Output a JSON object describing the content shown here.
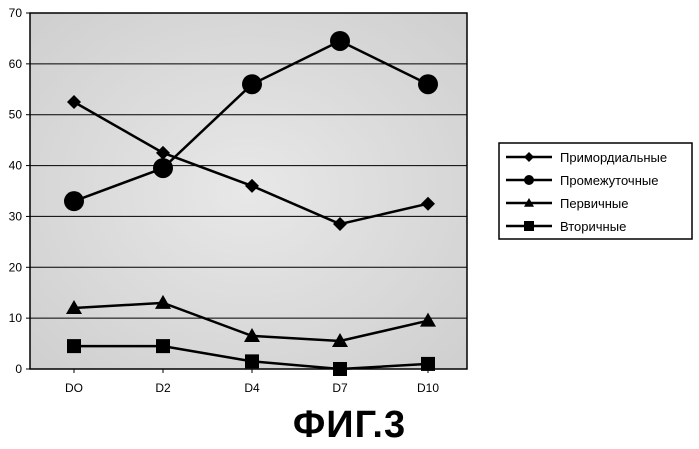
{
  "caption": "ФИГ.3",
  "chart_data": {
    "type": "line",
    "categories": [
      "DO",
      "D2",
      "D4",
      "D7",
      "D10"
    ],
    "ylim": [
      0,
      70
    ],
    "yticks": [
      0,
      10,
      20,
      30,
      40,
      50,
      60,
      70
    ],
    "grid": true,
    "legend_position": "right",
    "series": [
      {
        "name": "Примордиальные",
        "marker": "diamond",
        "values": [
          52.5,
          42.5,
          36,
          28.5,
          32.5
        ]
      },
      {
        "name": "Промежуточные",
        "marker": "circle",
        "values": [
          33,
          39.5,
          56,
          64.5,
          56
        ]
      },
      {
        "name": "Первичные",
        "marker": "triangle",
        "values": [
          12,
          13,
          6.5,
          5.5,
          9.5
        ]
      },
      {
        "name": "Вторичные",
        "marker": "square",
        "values": [
          4.5,
          4.5,
          1.5,
          0,
          1
        ]
      }
    ]
  }
}
